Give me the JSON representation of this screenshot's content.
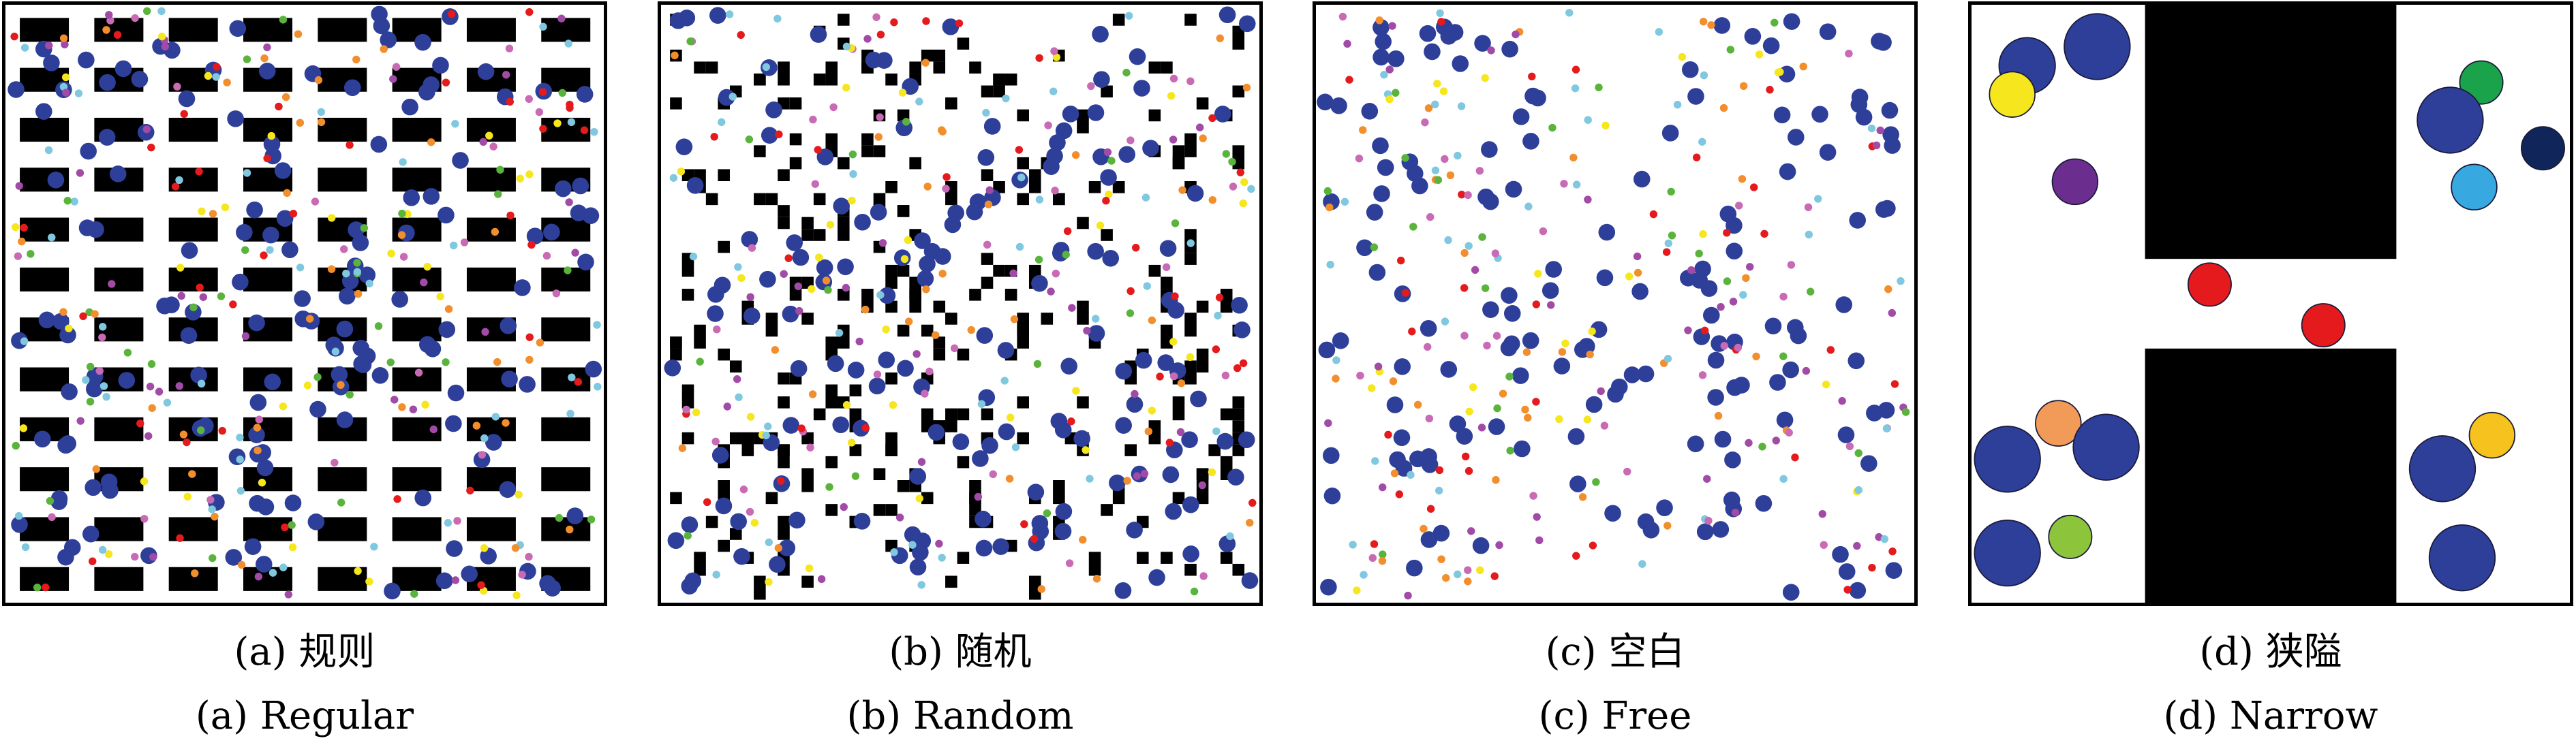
{
  "colors": {
    "agent": "#2e3f9a",
    "obstacle": "#000000",
    "goal_palette": [
      "#e41a1c",
      "#7fc8e0",
      "#a14aa6",
      "#f5e61e",
      "#f28e2b",
      "#5ab43c",
      "#c86ab4"
    ]
  },
  "panels": [
    {
      "id": "a",
      "layout": "regular",
      "caption_cn": "(a) 规则",
      "caption_en": "(a) Regular"
    },
    {
      "id": "b",
      "layout": "random",
      "caption_cn": "(b) 随机",
      "caption_en": "(b) Random"
    },
    {
      "id": "c",
      "layout": "free",
      "caption_cn": "(c) 空白",
      "caption_en": "(c) Free"
    },
    {
      "id": "d",
      "layout": "narrow",
      "caption_cn": "(d) 狭隘",
      "caption_en": "(d) Narrow",
      "circle_colors": [
        "#2e3f9a",
        "#2e3f9a",
        "#f5e61e",
        "#6b2e8e",
        "#1aa34a",
        "#2e3f9a",
        "#10265a",
        "#38a8e0",
        "#e41a1c",
        "#e41a1c",
        "#f29a58",
        "#2e3f9a",
        "#2e3f9a",
        "#f5c21e",
        "#2e3f9a",
        "#2e3f9a",
        "#8cc43c",
        "#2e3f9a"
      ]
    }
  ]
}
